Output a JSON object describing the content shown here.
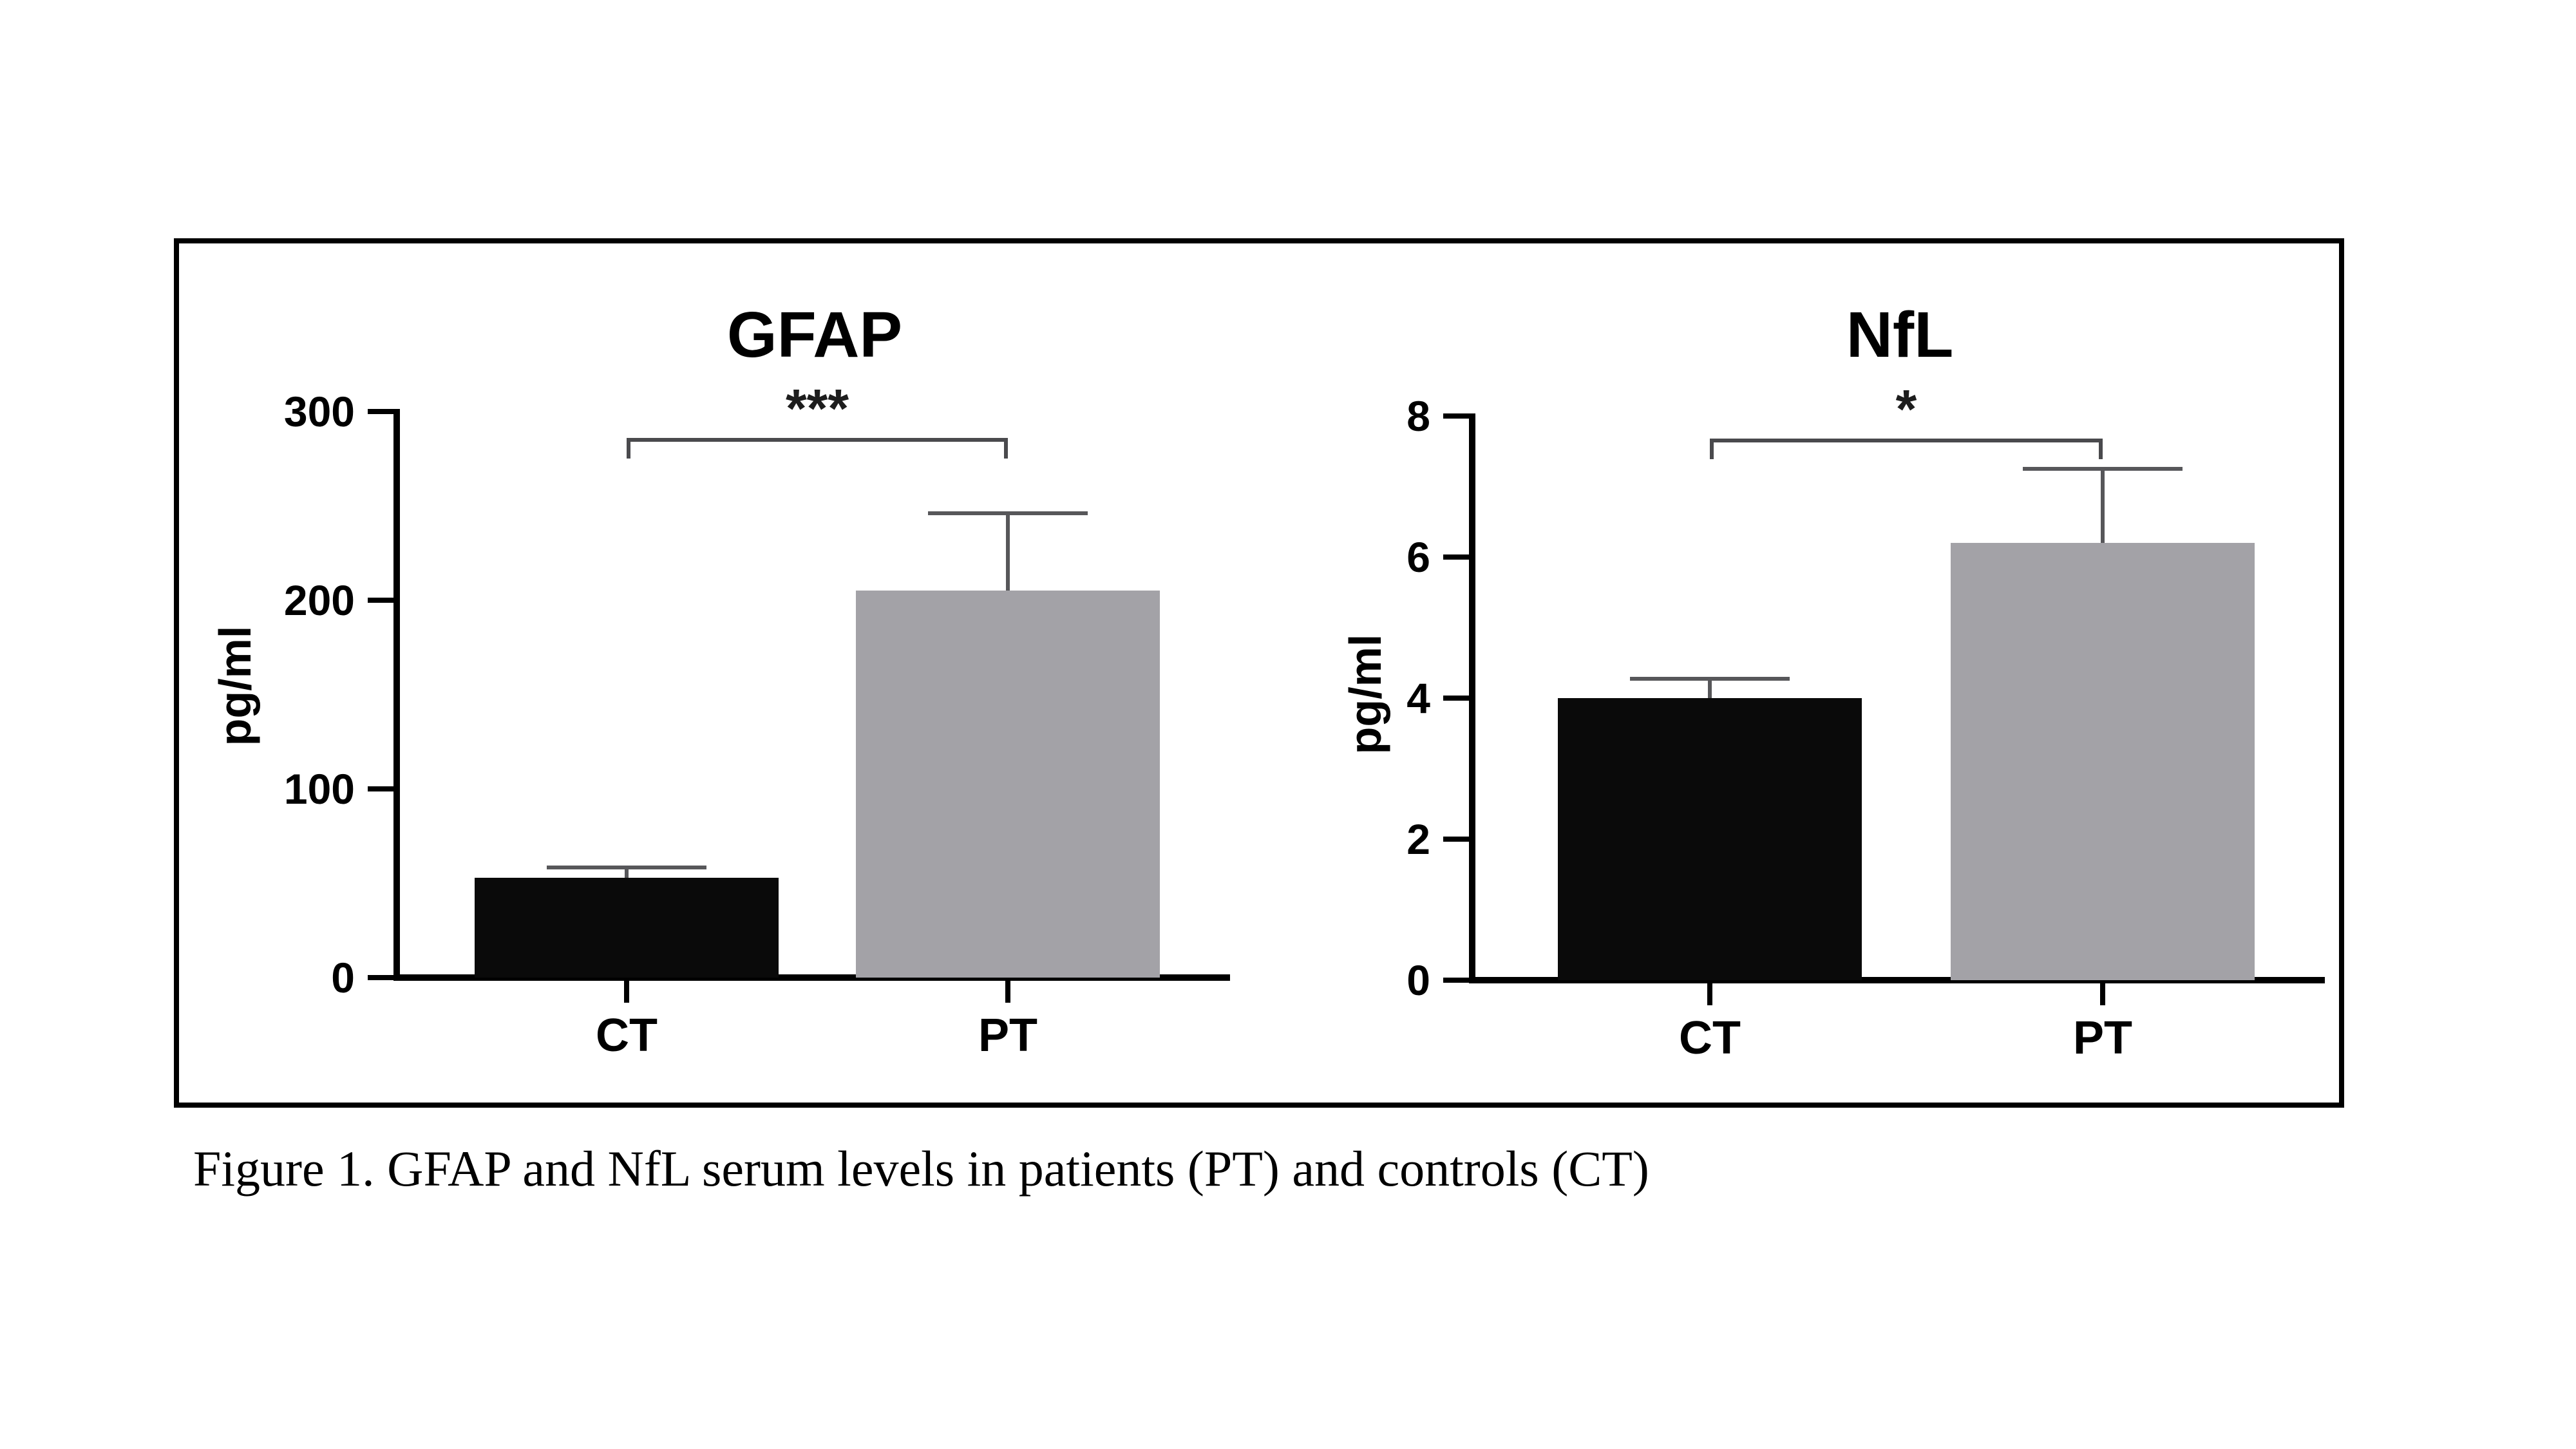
{
  "figure": {
    "caption": "Figure 1. GFAP and NfL serum levels in patients (PT) and controls (CT)"
  },
  "colors": {
    "page_bg": "#ffffff",
    "panel_border": "#000000",
    "axis": "#000000",
    "text": "#000000",
    "bar_black": "#0a0a0a",
    "bar_gray": "#a3a2a7",
    "error_bar": "#57575a",
    "bracket": "#4a4a4d"
  },
  "chart_data": [
    {
      "type": "bar",
      "title": "GFAP",
      "ylabel": "pg/ml",
      "xlabel": "",
      "categories": [
        "CT",
        "PT"
      ],
      "values": [
        53,
        205
      ],
      "errors_plus": [
        5.5,
        41
      ],
      "bar_colors": [
        "bar_black",
        "bar_gray"
      ],
      "yticks": [
        0,
        100,
        200,
        300
      ],
      "ylim": [
        0,
        300
      ],
      "grid": false,
      "legend": null,
      "significance": {
        "label": "***",
        "between": [
          "CT",
          "PT"
        ],
        "bracket_y_value": 286
      }
    },
    {
      "type": "bar",
      "title": "NfL",
      "ylabel": "pg/ml",
      "xlabel": "",
      "categories": [
        "CT",
        "PT"
      ],
      "values": [
        4.0,
        6.2
      ],
      "errors_plus": [
        0.27,
        1.05
      ],
      "bar_colors": [
        "bar_black",
        "bar_gray"
      ],
      "yticks": [
        0,
        2,
        4,
        6,
        8
      ],
      "ylim": [
        0,
        8
      ],
      "grid": false,
      "legend": null,
      "significance": {
        "label": "*",
        "between": [
          "CT",
          "PT"
        ],
        "bracket_y_value": 7.68
      }
    }
  ]
}
